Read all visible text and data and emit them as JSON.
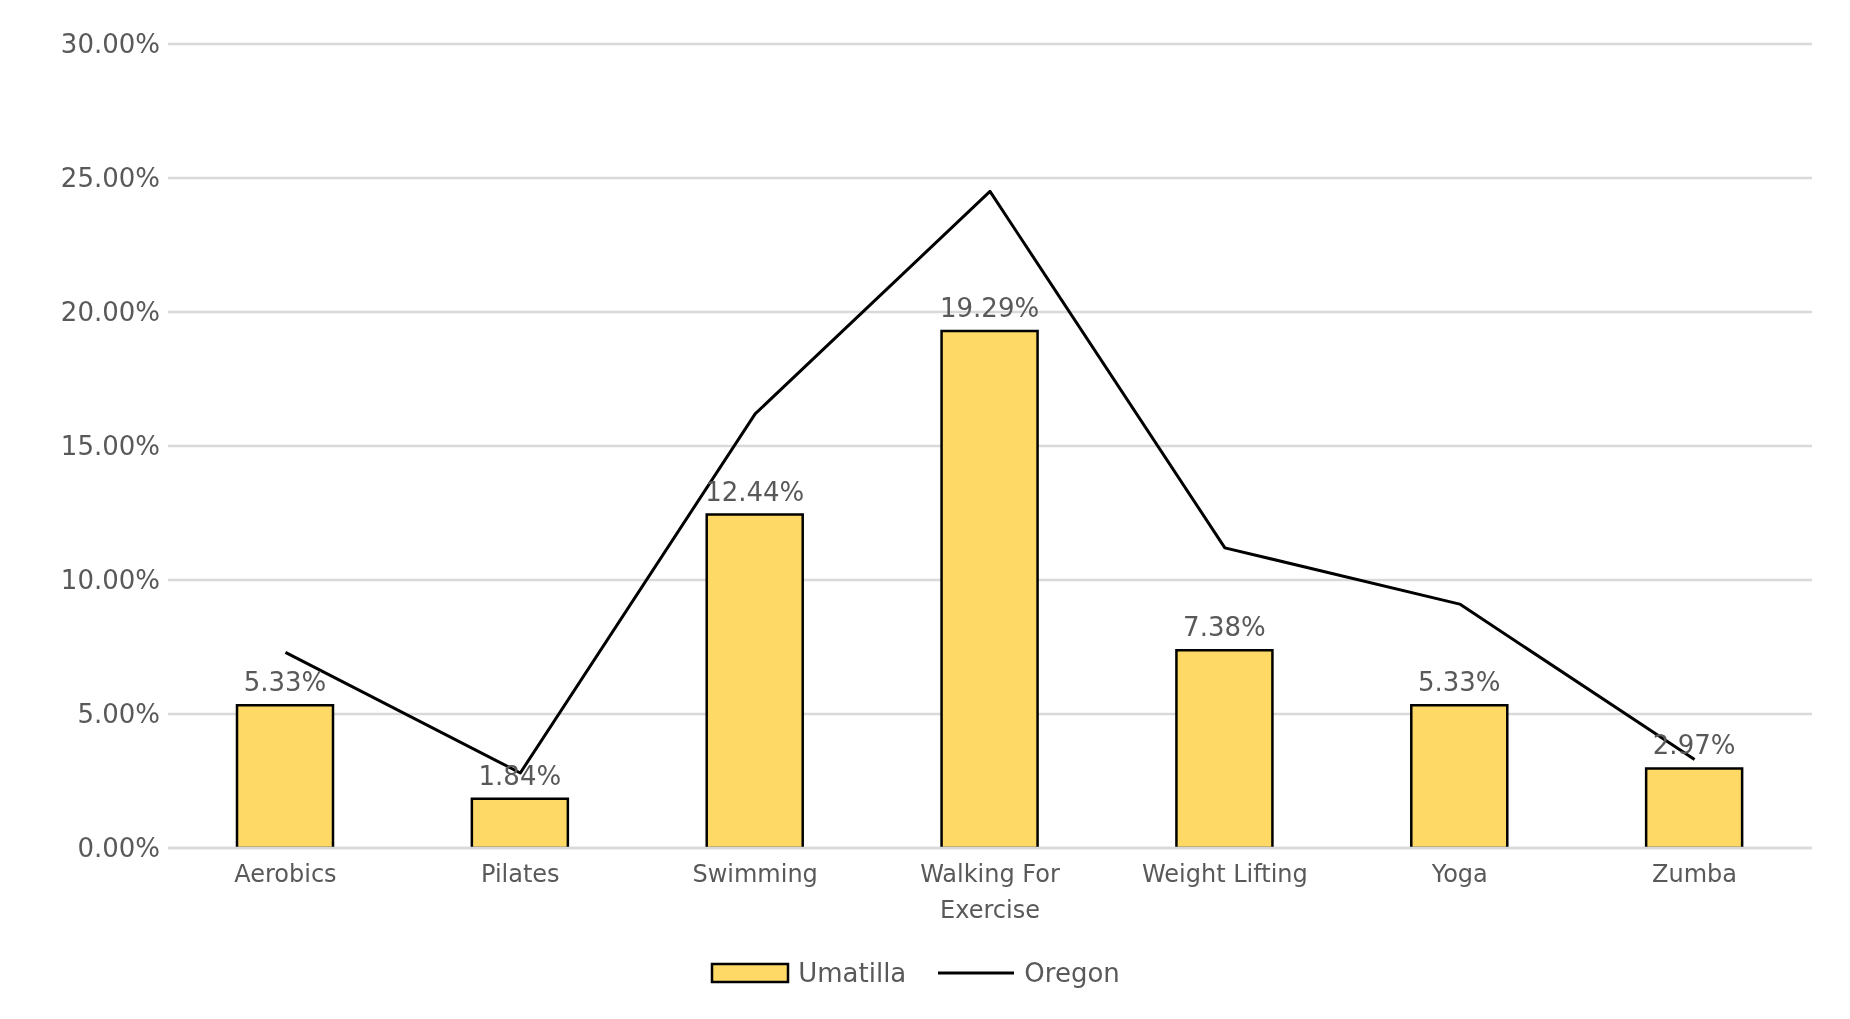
{
  "chart_data": {
    "type": "bar",
    "categories": [
      "Aerobics",
      "Pilates",
      "Swimming",
      "Walking For Exercise",
      "Weight Lifting",
      "Yoga",
      "Zumba"
    ],
    "series": [
      {
        "name": "Umatilla",
        "color": "#ffd966",
        "values": [
          5.33,
          1.84,
          12.44,
          19.29,
          7.38,
          5.33,
          2.97
        ],
        "value_labels": [
          "5.33%",
          "1.84%",
          "12.44%",
          "19.29%",
          "7.38%",
          "5.33%",
          "2.97%"
        ]
      },
      {
        "name": "Oregon",
        "type": "line",
        "color": "#000000",
        "values": [
          7.3,
          2.8,
          16.2,
          24.5,
          11.2,
          9.1,
          3.3
        ],
        "marker": "none"
      }
    ],
    "ylim": [
      0,
      30
    ],
    "yticks": [
      {
        "value": 0,
        "label": "0.00%"
      },
      {
        "value": 5,
        "label": "5.00%"
      },
      {
        "value": 10,
        "label": "10.00%"
      },
      {
        "value": 15,
        "label": "15.00%"
      },
      {
        "value": 20,
        "label": "20.00%"
      },
      {
        "value": 25,
        "label": "25.00%"
      },
      {
        "value": 30,
        "label": "30.00%"
      }
    ],
    "grid": "y",
    "legend": "bottom"
  }
}
